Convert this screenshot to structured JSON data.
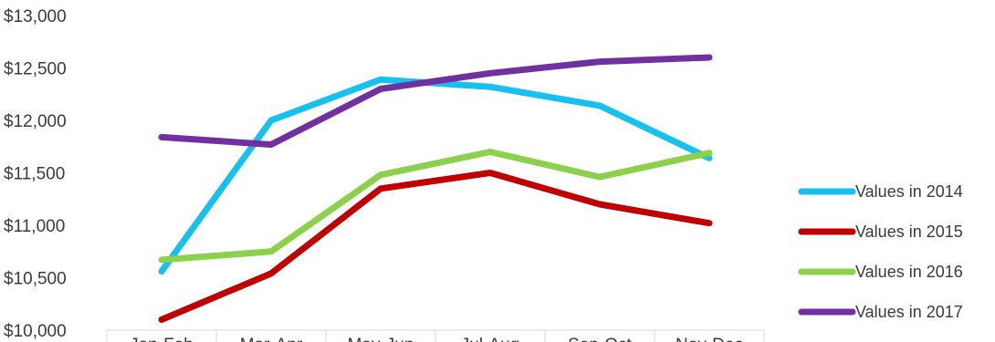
{
  "chart_data": {
    "type": "line",
    "categories": [
      "Jan-Feb",
      "Mar-Apr",
      "May-Jun",
      "Jul-Aug",
      "Sep-Oct",
      "Nov-Dec"
    ],
    "series": [
      {
        "name": "Values in 2014",
        "color": "#16c0ef",
        "values": [
          10560,
          12000,
          12390,
          12320,
          12140,
          11640
        ]
      },
      {
        "name": "Values in 2015",
        "color": "#c00000",
        "values": [
          10100,
          10540,
          11350,
          11500,
          11200,
          11020
        ]
      },
      {
        "name": "Values in 2016",
        "color": "#8cd14b",
        "values": [
          10670,
          10750,
          11480,
          11700,
          11460,
          11690
        ]
      },
      {
        "name": "Values in 2017",
        "color": "#7030a0",
        "values": [
          11840,
          11770,
          12300,
          12450,
          12560,
          12600
        ]
      }
    ],
    "ylim": [
      10000,
      13000
    ],
    "y_ticks": [
      10000,
      10500,
      11000,
      11500,
      12000,
      12500,
      13000
    ],
    "y_tick_labels": [
      "$10,000",
      "$10,500",
      "$11,000",
      "$11,500",
      "$12,000",
      "$12,500",
      "$13,000"
    ],
    "legend_position": "right",
    "grid": false
  }
}
